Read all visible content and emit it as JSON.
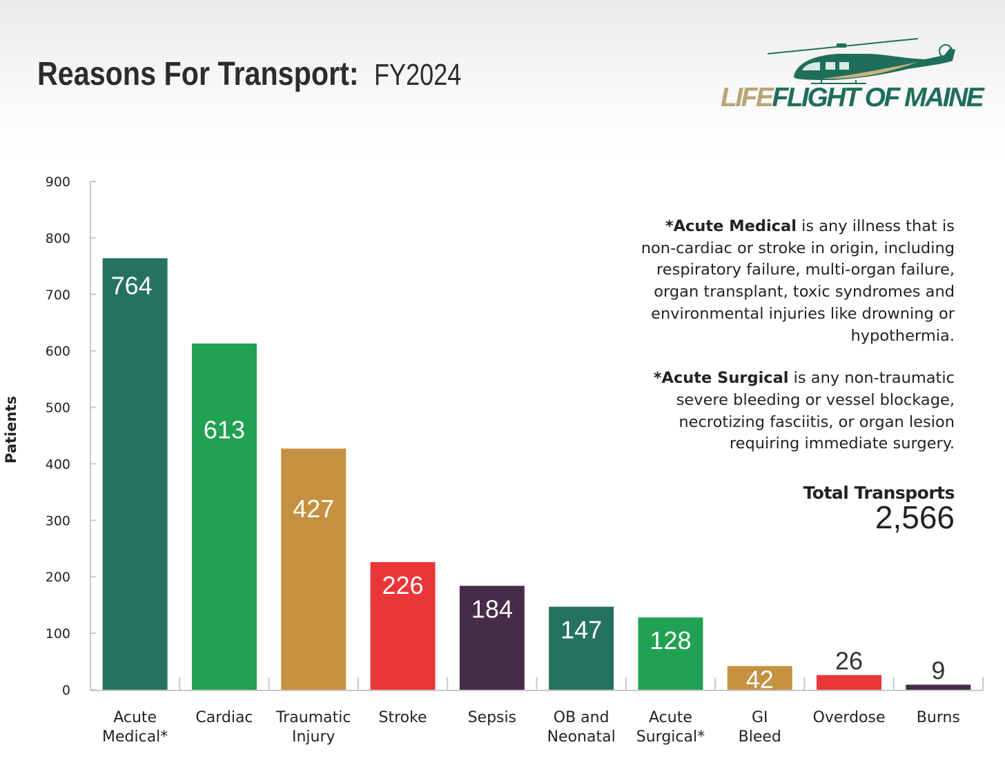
{
  "header": {
    "title_main": "Reasons For Transport:",
    "title_year": "FY2024"
  },
  "logo": {
    "text_part1": "LIFE",
    "text_part2": "FLIGHT OF MAINE",
    "colors": {
      "gold": "#b8a574",
      "green": "#1e6e5a"
    },
    "icon": "helicopter-icon"
  },
  "notes": {
    "acute_medical_term": "*Acute Medical",
    "acute_medical_text": " is any illness that is non-cardiac or stroke in origin, including respiratory failure, multi-organ failure, organ transplant, toxic syndromes and environmental injuries like drowning or hypothermia.",
    "acute_surgical_term": "*Acute Surgical",
    "acute_surgical_text": " is any non-traumatic severe bleeding or vessel blockage, necrotizing fasciitis, or organ lesion requiring immediate surgery."
  },
  "total": {
    "label": "Total Transports",
    "value": "2,566"
  },
  "chart_data": {
    "type": "bar",
    "title": "Reasons For Transport: FY2024",
    "ylabel": "Patients",
    "xlabel": "",
    "ylim": [
      0,
      900
    ],
    "yticks": [
      0,
      100,
      200,
      300,
      400,
      500,
      600,
      700,
      800,
      900
    ],
    "grid": false,
    "categories": [
      [
        "Acute",
        "Medical*"
      ],
      [
        "Cardiac"
      ],
      [
        "Traumatic",
        "Injury"
      ],
      [
        "Stroke"
      ],
      [
        "Sepsis"
      ],
      [
        "OB and",
        "Neonatal"
      ],
      [
        "Acute",
        "Surgical*"
      ],
      [
        "GI",
        "Bleed"
      ],
      [
        "Overdose"
      ],
      [
        "Burns"
      ]
    ],
    "values": [
      764,
      613,
      427,
      226,
      184,
      147,
      128,
      42,
      26,
      9
    ],
    "value_labels": [
      "764",
      "613",
      "427",
      "226",
      "184",
      "147",
      "128",
      "42",
      "26",
      "9"
    ],
    "colors": [
      "#26735d",
      "#21a152",
      "#c59140",
      "#eb3639",
      "#472c4a",
      "#26735d",
      "#21a152",
      "#c59140",
      "#eb3639",
      "#472c4a"
    ],
    "label_colors": [
      "#ffffff",
      "#ffffff",
      "#ffffff",
      "#ffffff",
      "#ffffff",
      "#ffffff",
      "#ffffff",
      "#ffffff",
      "#333333",
      "#333333"
    ]
  }
}
